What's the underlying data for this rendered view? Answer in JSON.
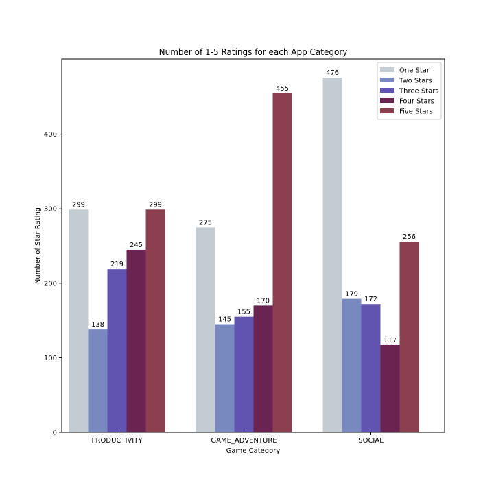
{
  "chart_data": {
    "type": "bar",
    "title": "Number of 1-5 Ratings for each App Category",
    "xlabel": "Game Category",
    "ylabel": "Number of Star Rating",
    "categories": [
      "PRODUCTIVITY",
      "GAME_ADVENTURE",
      "SOCIAL"
    ],
    "ylim": [
      0,
      500
    ],
    "yticks": [
      0,
      100,
      200,
      300,
      400
    ],
    "legend_position": "top-right",
    "series": [
      {
        "name": "One Star",
        "color": "#c4ccd3",
        "values": [
          299,
          275,
          476
        ]
      },
      {
        "name": "Two Stars",
        "color": "#7789be",
        "values": [
          138,
          145,
          179
        ]
      },
      {
        "name": "Three Stars",
        "color": "#6154b0",
        "values": [
          219,
          155,
          172
        ]
      },
      {
        "name": "Four Stars",
        "color": "#6b2351",
        "values": [
          245,
          170,
          117
        ]
      },
      {
        "name": "Five Stars",
        "color": "#8c404f",
        "values": [
          299,
          455,
          256
        ]
      }
    ]
  }
}
